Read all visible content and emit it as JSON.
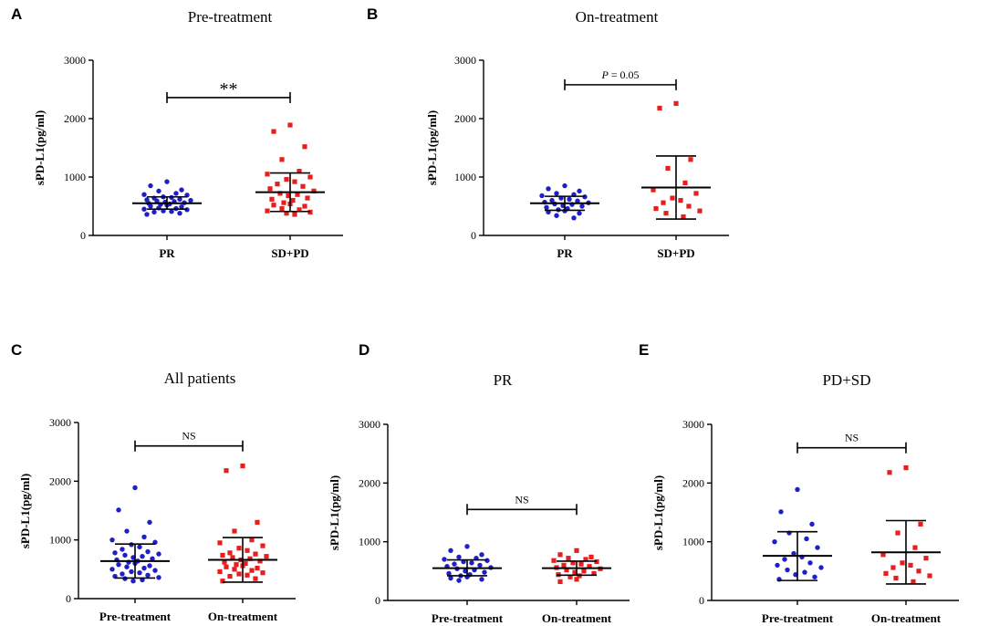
{
  "chart_data": [
    {
      "panel": "A",
      "type": "scatter",
      "title": "Pre-treatment",
      "ylabel": "sPD-L1(pg/ml)",
      "ylim": [
        0,
        3000
      ],
      "yticks": [
        0,
        1000,
        2000,
        3000
      ],
      "yticklabels": [
        "0",
        "1000",
        "2000",
        "3000"
      ],
      "categories": [
        "PR",
        "SD+PD"
      ],
      "series": [
        {
          "name": "PR",
          "color": "#1f1fc8",
          "marker": "circle",
          "values": [
            920,
            850,
            780,
            760,
            720,
            700,
            690,
            660,
            650,
            640,
            620,
            610,
            600,
            590,
            580,
            570,
            560,
            550,
            540,
            530,
            520,
            500,
            490,
            470,
            460,
            450,
            440,
            420,
            410,
            400,
            380,
            360
          ],
          "mean": 550,
          "sd_low": 450,
          "sd_high": 660
        },
        {
          "name": "SD+PD",
          "color": "#e61e1e",
          "marker": "square",
          "values": [
            1890,
            1780,
            1520,
            1300,
            1100,
            1050,
            1000,
            960,
            920,
            880,
            840,
            800,
            760,
            720,
            700,
            680,
            640,
            620,
            600,
            560,
            540,
            520,
            500,
            460,
            440,
            420,
            400,
            380,
            360
          ],
          "mean": 740,
          "sd_low": 410,
          "sd_high": 1070
        }
      ],
      "significance": {
        "label": "**",
        "style": "stars",
        "y": 2360
      }
    },
    {
      "panel": "B",
      "type": "scatter",
      "title": "On-treatment",
      "ylabel": "sPD-L1(pg/ml)",
      "ylim": [
        0,
        3000
      ],
      "yticks": [
        0,
        1000,
        2000,
        3000
      ],
      "yticklabels": [
        "0",
        "1000",
        "2000",
        "3000"
      ],
      "categories": [
        "PR",
        "SD+PD"
      ],
      "series": [
        {
          "name": "PR",
          "color": "#1f1fc8",
          "marker": "circle",
          "values": [
            850,
            800,
            760,
            720,
            700,
            680,
            660,
            640,
            620,
            600,
            590,
            570,
            560,
            540,
            530,
            510,
            500,
            480,
            460,
            440,
            420,
            400,
            380,
            340,
            300
          ],
          "mean": 550,
          "sd_low": 430,
          "sd_high": 670
        },
        {
          "name": "SD+PD",
          "color": "#e61e1e",
          "marker": "square",
          "values": [
            2260,
            2180,
            1300,
            1150,
            900,
            780,
            720,
            640,
            600,
            560,
            500,
            460,
            420,
            380,
            320
          ],
          "mean": 820,
          "sd_low": 280,
          "sd_high": 1360
        }
      ],
      "significance": {
        "label": "P = 0.05",
        "style": "pvalue",
        "prefix": "P",
        "rest": " = 0.05",
        "y": 2580
      }
    },
    {
      "panel": "C",
      "type": "scatter",
      "title": "All patients",
      "ylabel": "sPD-L1(pg/ml)",
      "ylim": [
        0,
        3000
      ],
      "yticks": [
        0,
        1000,
        2000,
        3000
      ],
      "yticklabels": [
        "0",
        "1000",
        "2000",
        "3000"
      ],
      "categories": [
        "Pre-treatment",
        "On-treatment"
      ],
      "series": [
        {
          "name": "Pre-treatment",
          "color": "#1f1fc8",
          "marker": "circle",
          "values": [
            1890,
            1510,
            1300,
            1150,
            1050,
            1000,
            960,
            920,
            880,
            840,
            800,
            780,
            760,
            740,
            720,
            700,
            680,
            660,
            640,
            620,
            600,
            580,
            560,
            540,
            520,
            500,
            480,
            460,
            440,
            420,
            400,
            380,
            360,
            340,
            320,
            300
          ],
          "mean": 640,
          "sd_low": 350,
          "sd_high": 930
        },
        {
          "name": "On-treatment",
          "color": "#e61e1e",
          "marker": "square",
          "values": [
            2260,
            2180,
            1300,
            1150,
            1000,
            950,
            900,
            860,
            820,
            780,
            760,
            740,
            720,
            700,
            680,
            660,
            640,
            620,
            600,
            580,
            560,
            540,
            520,
            500,
            480,
            460,
            440,
            420,
            400,
            380,
            340,
            300
          ],
          "mean": 660,
          "sd_low": 280,
          "sd_high": 1040
        }
      ],
      "significance": {
        "label": "NS",
        "style": "text",
        "y": 2600
      }
    },
    {
      "panel": "D",
      "type": "scatter",
      "title": "PR",
      "ylabel": "sPD-L1(pg/ml)",
      "ylim": [
        0,
        3000
      ],
      "yticks": [
        0,
        1000,
        2000,
        3000
      ],
      "yticklabels": [
        "0",
        "1000",
        "2000",
        "3000"
      ],
      "categories": [
        "Pre-treatment",
        "On-treatment"
      ],
      "series": [
        {
          "name": "Pre-treatment",
          "color": "#1f1fc8",
          "marker": "circle",
          "values": [
            920,
            850,
            780,
            740,
            720,
            700,
            680,
            660,
            640,
            620,
            600,
            580,
            560,
            540,
            520,
            500,
            480,
            460,
            440,
            420,
            400,
            380,
            360,
            340
          ],
          "mean": 550,
          "sd_low": 420,
          "sd_high": 690
        },
        {
          "name": "On-treatment",
          "color": "#e61e1e",
          "marker": "square",
          "values": [
            850,
            780,
            740,
            720,
            700,
            680,
            660,
            640,
            620,
            600,
            580,
            560,
            540,
            520,
            500,
            480,
            460,
            440,
            420,
            400,
            360,
            320
          ],
          "mean": 550,
          "sd_low": 430,
          "sd_high": 670
        }
      ],
      "significance": {
        "label": "NS",
        "style": "text",
        "y": 1550
      }
    },
    {
      "panel": "E",
      "type": "scatter",
      "title": "PD+SD",
      "ylabel": "sPD-L1(pg/ml)",
      "ylim": [
        0,
        3000
      ],
      "yticks": [
        0,
        1000,
        2000,
        3000
      ],
      "yticklabels": [
        "0",
        "1000",
        "2000",
        "3000"
      ],
      "categories": [
        "Pre-treatment",
        "On-treatment"
      ],
      "series": [
        {
          "name": "Pre-treatment",
          "color": "#1f1fc8",
          "marker": "circle",
          "values": [
            1890,
            1510,
            1300,
            1150,
            1050,
            1000,
            900,
            800,
            740,
            700,
            640,
            600,
            560,
            520,
            480,
            440,
            400,
            360
          ],
          "mean": 760,
          "sd_low": 340,
          "sd_high": 1170
        },
        {
          "name": "On-treatment",
          "color": "#e61e1e",
          "marker": "square",
          "values": [
            2260,
            2180,
            1300,
            1150,
            900,
            780,
            720,
            640,
            600,
            560,
            500,
            460,
            420,
            380,
            320
          ],
          "mean": 820,
          "sd_low": 280,
          "sd_high": 1360
        }
      ],
      "significance": {
        "label": "NS",
        "style": "text",
        "y": 2600
      }
    }
  ]
}
